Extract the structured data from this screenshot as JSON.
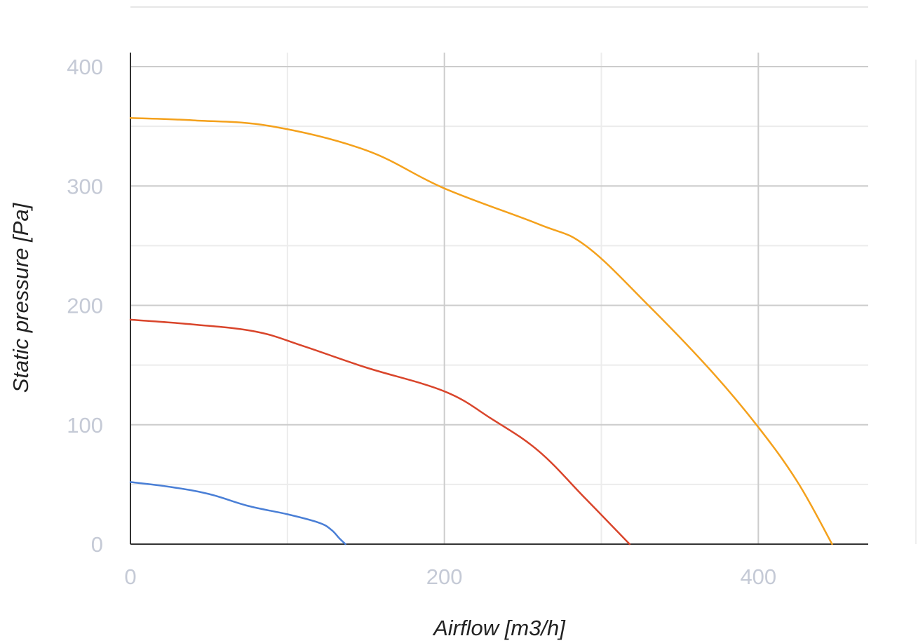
{
  "chart_data": {
    "type": "line",
    "title": "",
    "xlabel": "Airflow [m3/h]",
    "ylabel": "Static pressure [Pa]",
    "xlim": [
      0,
      470
    ],
    "ylim": [
      0,
      400
    ],
    "x_ticks": [
      0,
      200,
      400
    ],
    "y_ticks": [
      0,
      100,
      200,
      300,
      400
    ],
    "grid": true,
    "legend": "none",
    "series": [
      {
        "color": "#4a7fd6",
        "points": [
          [
            0,
            52
          ],
          [
            25,
            48
          ],
          [
            50,
            42
          ],
          [
            75,
            32
          ],
          [
            100,
            25
          ],
          [
            120,
            18
          ],
          [
            128,
            12
          ],
          [
            133,
            5
          ],
          [
            137,
            0
          ]
        ]
      },
      {
        "color": "#d9452b",
        "points": [
          [
            0,
            188
          ],
          [
            40,
            184
          ],
          [
            80,
            178
          ],
          [
            110,
            166
          ],
          [
            150,
            148
          ],
          [
            200,
            128
          ],
          [
            230,
            105
          ],
          [
            260,
            78
          ],
          [
            290,
            38
          ],
          [
            318,
            0
          ]
        ]
      },
      {
        "color": "#f4a11c",
        "points": [
          [
            0,
            357
          ],
          [
            40,
            355
          ],
          [
            90,
            350
          ],
          [
            150,
            330
          ],
          [
            200,
            298
          ],
          [
            260,
            268
          ],
          [
            290,
            250
          ],
          [
            330,
            200
          ],
          [
            370,
            145
          ],
          [
            400,
            98
          ],
          [
            425,
            52
          ],
          [
            447,
            0
          ]
        ]
      }
    ]
  }
}
